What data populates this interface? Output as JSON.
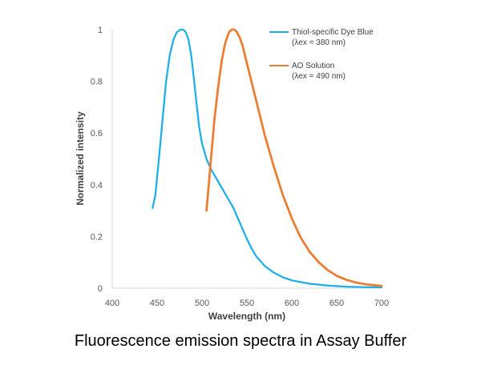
{
  "caption": "Fluorescence emission spectra in Assay Buffer",
  "chart_data": {
    "type": "line",
    "xlabel": "Wavelength (nm)",
    "ylabel": "Normalized intensity",
    "xlim": [
      400,
      700
    ],
    "ylim": [
      0,
      1
    ],
    "xticks": [
      400,
      450,
      500,
      550,
      600,
      650,
      700
    ],
    "yticks": [
      0,
      0.2,
      0.4,
      0.6,
      0.8,
      1
    ],
    "ytick_labels": [
      "0",
      "0.2",
      "0.4",
      "0.6",
      "0.8",
      "1"
    ],
    "grid": false,
    "legend_position": "top-right",
    "series": [
      {
        "name": "Thiol-specific Dye Blue",
        "name_line2": "(λex = 380 nm)",
        "color": "#1cb0e8",
        "x": [
          445,
          448,
          452,
          456,
          460,
          464,
          468,
          472,
          476,
          479,
          482,
          485,
          488,
          491,
          494,
          497,
          500,
          505,
          510,
          515,
          520,
          525,
          530,
          535,
          540,
          545,
          550,
          555,
          560,
          570,
          580,
          590,
          600,
          620,
          640,
          660,
          680,
          700
        ],
        "y": [
          0.31,
          0.36,
          0.5,
          0.65,
          0.8,
          0.9,
          0.96,
          0.99,
          1.0,
          1.0,
          0.99,
          0.96,
          0.9,
          0.81,
          0.71,
          0.62,
          0.56,
          0.5,
          0.46,
          0.43,
          0.4,
          0.37,
          0.34,
          0.31,
          0.27,
          0.23,
          0.19,
          0.155,
          0.125,
          0.085,
          0.06,
          0.042,
          0.03,
          0.017,
          0.01,
          0.006,
          0.004,
          0.003
        ]
      },
      {
        "name": "AO Solution",
        "name_line2": "(λex = 490 nm)",
        "color": "#ed7d31",
        "x": [
          505,
          508,
          511,
          514,
          518,
          522,
          526,
          530,
          533,
          536,
          539,
          542,
          545,
          550,
          555,
          560,
          570,
          580,
          590,
          600,
          610,
          620,
          630,
          640,
          650,
          660,
          670,
          680,
          690,
          700
        ],
        "y": [
          0.3,
          0.42,
          0.54,
          0.66,
          0.78,
          0.88,
          0.95,
          0.99,
          1.0,
          1.0,
          0.99,
          0.97,
          0.94,
          0.87,
          0.8,
          0.73,
          0.59,
          0.47,
          0.36,
          0.27,
          0.195,
          0.14,
          0.1,
          0.07,
          0.048,
          0.033,
          0.023,
          0.016,
          0.012,
          0.009
        ]
      }
    ]
  }
}
